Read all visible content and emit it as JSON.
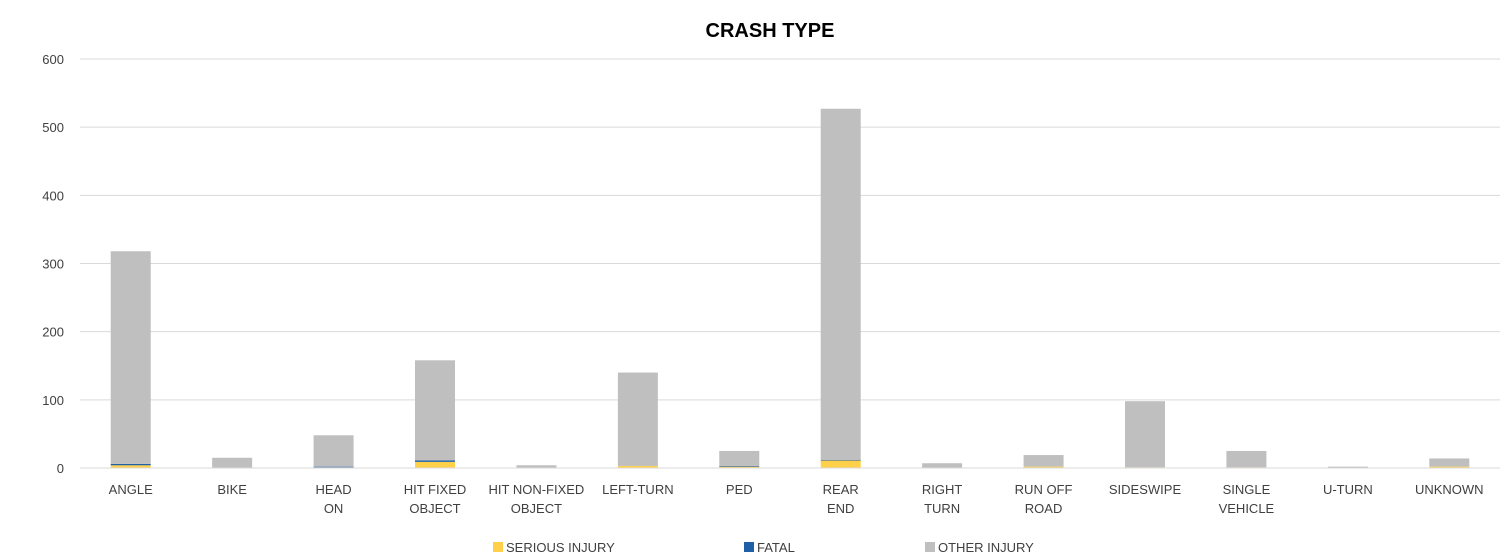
{
  "chart_data": {
    "type": "bar",
    "stacked": true,
    "title": "CRASH TYPE",
    "xlabel": "",
    "ylabel": "",
    "ylim": [
      0,
      600
    ],
    "yticks": [
      0,
      100,
      200,
      300,
      400,
      500,
      600
    ],
    "grid": true,
    "legend_position": "bottom",
    "categories": [
      [
        "ANGLE"
      ],
      [
        "BIKE"
      ],
      [
        "HEAD",
        "ON"
      ],
      [
        "HIT FIXED",
        "OBJECT"
      ],
      [
        "HIT NON-FIXED",
        "OBJECT"
      ],
      [
        "LEFT-TURN"
      ],
      [
        "PED"
      ],
      [
        "REAR",
        "END"
      ],
      [
        "RIGHT",
        "TURN"
      ],
      [
        "RUN OFF",
        "ROAD"
      ],
      [
        "SIDESWIPE"
      ],
      [
        "SINGLE",
        "VEHICLE"
      ],
      [
        "U-TURN"
      ],
      [
        "UNKNOWN"
      ]
    ],
    "series": [
      {
        "name": "SERIOUS INJURY",
        "color": "#FFD04A",
        "values": [
          4,
          0,
          1,
          9,
          0,
          3,
          2,
          11,
          0,
          2,
          1,
          1,
          0,
          2
        ]
      },
      {
        "name": "FATAL",
        "color": "#1F5FA6",
        "values": [
          2,
          0,
          1,
          2,
          0,
          0,
          1,
          1,
          0,
          0,
          0,
          0,
          0,
          0
        ]
      },
      {
        "name": "OTHER INJURY",
        "color": "#BFBFBF",
        "values": [
          312,
          15,
          46,
          147,
          4,
          137,
          22,
          515,
          7,
          17,
          97,
          24,
          2,
          12
        ]
      }
    ]
  }
}
